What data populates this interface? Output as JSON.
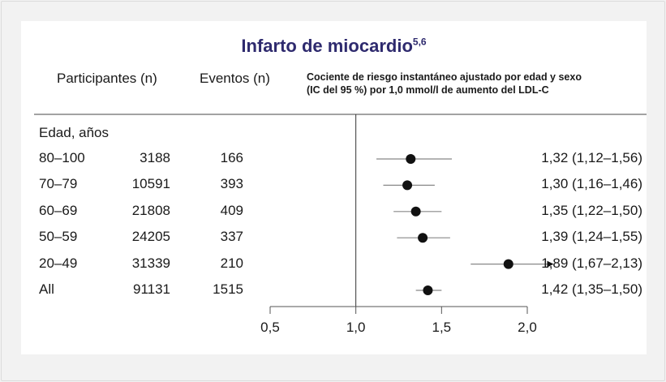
{
  "chart_data": {
    "type": "forest",
    "title": "Infarto de miocardio",
    "title_superscript": "5,6",
    "columns": {
      "participants": "Participantes (n)",
      "events": "Eventos (n)",
      "effect_line1": "Cociente de riesgo instantáneo ajustado por edad y sexo",
      "effect_line2": "(IC del 95 %) por 1,0 mmol/l de aumento del LDL-C"
    },
    "group_label": "Edad, años",
    "rows": [
      {
        "label": "80–100",
        "participants": "3188",
        "events": "166",
        "hr": 1.32,
        "lo": 1.12,
        "hi": 1.56,
        "text": "1,32 (1,12–1,56)",
        "arrow": false
      },
      {
        "label": "70–79",
        "participants": "10591",
        "events": "393",
        "hr": 1.3,
        "lo": 1.16,
        "hi": 1.46,
        "text": "1,30 (1,16–1,46)",
        "arrow": false
      },
      {
        "label": "60–69",
        "participants": "21808",
        "events": "409",
        "hr": 1.35,
        "lo": 1.22,
        "hi": 1.5,
        "text": "1,35 (1,22–1,50)",
        "arrow": false
      },
      {
        "label": "50–59",
        "participants": "24205",
        "events": "337",
        "hr": 1.39,
        "lo": 1.24,
        "hi": 1.55,
        "text": "1,39 (1,24–1,55)",
        "arrow": false
      },
      {
        "label": "20–49",
        "participants": "31339",
        "events": "210",
        "hr": 1.89,
        "lo": 1.67,
        "hi": 2.13,
        "text": "1,89 (1,67–2,13)",
        "arrow": true
      },
      {
        "label": "All",
        "participants": "91131",
        "events": "1515",
        "hr": 1.42,
        "lo": 1.35,
        "hi": 1.5,
        "text": "1,42 (1,35–1,50)",
        "arrow": false
      }
    ],
    "xlim": [
      0.5,
      2.0
    ],
    "reference": 1.0,
    "ticks": [
      0.5,
      1.0,
      1.5,
      2.0
    ],
    "tick_labels": [
      "0,5",
      "1,0",
      "1,5",
      "2,0"
    ],
    "colors": {
      "title": "#2e2a6e",
      "marker": "#111111",
      "ci_line": "#888888",
      "axis": "#555555"
    }
  }
}
